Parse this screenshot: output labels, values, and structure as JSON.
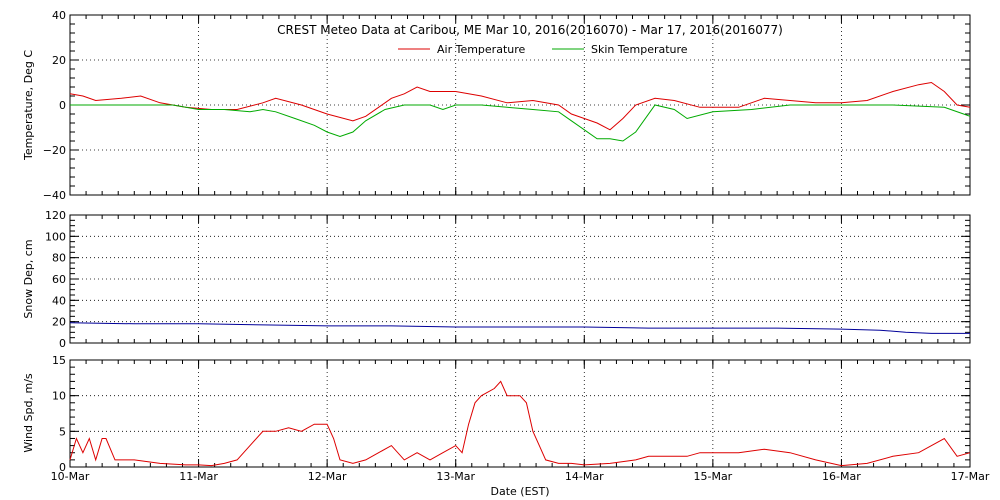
{
  "chart_data": [
    {
      "type": "line",
      "title": "CREST Meteo Data at Caribou, ME   Mar 10, 2016(2016070) - Mar 17, 2016(2016077)",
      "ylabel": "Temperature, Deg C",
      "ylim": [
        -40,
        40
      ],
      "yticks": [
        "40",
        "20",
        "0",
        "−20",
        "−40"
      ],
      "ytick_values": [
        40,
        20,
        0,
        -20,
        -40
      ],
      "xlim": [
        0,
        7
      ],
      "grid": true,
      "legend_position": "top-center",
      "series": [
        {
          "name": "Air Temperature",
          "color": "#dd0000",
          "x": [
            0,
            0.1,
            0.2,
            0.4,
            0.55,
            0.7,
            0.9,
            1.1,
            1.3,
            1.5,
            1.6,
            1.8,
            2.0,
            2.2,
            2.3,
            2.4,
            2.5,
            2.6,
            2.7,
            2.8,
            3.0,
            3.2,
            3.4,
            3.6,
            3.8,
            3.9,
            4.0,
            4.1,
            4.2,
            4.3,
            4.4,
            4.55,
            4.7,
            4.9,
            5.2,
            5.4,
            5.6,
            5.8,
            6.0,
            6.2,
            6.4,
            6.6,
            6.7,
            6.8,
            6.9,
            7.0
          ],
          "y": [
            5,
            4,
            2,
            3,
            4,
            1,
            -1,
            -2,
            -2,
            1,
            3,
            0,
            -4,
            -7,
            -5,
            -1,
            3,
            5,
            8,
            6,
            6,
            4,
            1,
            2,
            0,
            -4,
            -6,
            -8,
            -11,
            -6,
            0,
            3,
            2,
            -1,
            -1,
            3,
            2,
            1,
            1,
            2,
            6,
            9,
            10,
            6,
            0,
            -1
          ]
        },
        {
          "name": "Skin Temperature",
          "color": "#00aa00",
          "x": [
            0,
            0.2,
            0.5,
            0.8,
            1.0,
            1.2,
            1.4,
            1.5,
            1.6,
            1.75,
            1.9,
            2.0,
            2.1,
            2.2,
            2.3,
            2.45,
            2.6,
            2.8,
            2.9,
            3.0,
            3.2,
            3.4,
            3.6,
            3.8,
            3.9,
            4.0,
            4.1,
            4.2,
            4.3,
            4.4,
            4.55,
            4.7,
            4.8,
            5.0,
            5.3,
            5.6,
            6.0,
            6.4,
            6.8,
            6.95,
            7.0
          ],
          "y": [
            0,
            0,
            0,
            0,
            -2,
            -2,
            -3,
            -2,
            -3,
            -6,
            -9,
            -12,
            -14,
            -12,
            -7,
            -2,
            0,
            0,
            -2,
            0,
            0,
            -1,
            -2,
            -3,
            -7,
            -11,
            -15,
            -15,
            -16,
            -12,
            0,
            -2,
            -6,
            -3,
            -2,
            0,
            0,
            0,
            -1,
            -4,
            -5
          ]
        }
      ]
    },
    {
      "type": "line",
      "ylabel": "Snow Dep, cm",
      "ylim": [
        0,
        120
      ],
      "yticks": [
        "0",
        "20",
        "40",
        "60",
        "80",
        "100",
        "120"
      ],
      "ytick_values": [
        0,
        20,
        40,
        60,
        80,
        100,
        120
      ],
      "xlim": [
        0,
        7
      ],
      "grid": true,
      "series": [
        {
          "color": "#000099",
          "x": [
            0,
            0.5,
            1.0,
            1.5,
            2.0,
            2.5,
            3.0,
            3.5,
            4.0,
            4.5,
            5.0,
            5.5,
            6.0,
            6.3,
            6.5,
            6.7,
            7.0
          ],
          "y": [
            19,
            18,
            18,
            17,
            16,
            16,
            15,
            15,
            15,
            14,
            14,
            14,
            13,
            12,
            10,
            9,
            9
          ]
        }
      ]
    },
    {
      "type": "line",
      "ylabel": "Wind Spd, m/s",
      "xlabel": "Date (EST)",
      "ylim": [
        0,
        15
      ],
      "yticks": [
        "0",
        "5",
        "10",
        "15"
      ],
      "ytick_values": [
        0,
        5,
        10,
        15
      ],
      "xlim": [
        0,
        7
      ],
      "x_tick_labels": [
        "10-Mar",
        "11-Mar",
        "12-Mar",
        "13-Mar",
        "14-Mar",
        "15-Mar",
        "16-Mar",
        "17-Mar"
      ],
      "grid": true,
      "series": [
        {
          "color": "#dd0000",
          "x": [
            0,
            0.05,
            0.1,
            0.15,
            0.2,
            0.25,
            0.28,
            0.35,
            0.5,
            0.7,
            0.9,
            1.0,
            1.1,
            1.2,
            1.3,
            1.4,
            1.5,
            1.6,
            1.7,
            1.8,
            1.9,
            2.0,
            2.05,
            2.1,
            2.2,
            2.3,
            2.4,
            2.5,
            2.6,
            2.7,
            2.8,
            2.9,
            3.0,
            3.05,
            3.1,
            3.15,
            3.2,
            3.3,
            3.35,
            3.4,
            3.5,
            3.55,
            3.6,
            3.65,
            3.7,
            3.8,
            3.9,
            4.0,
            4.2,
            4.4,
            4.5,
            4.6,
            4.7,
            4.8,
            4.9,
            5.0,
            5.2,
            5.4,
            5.6,
            5.8,
            6.0,
            6.2,
            6.4,
            6.6,
            6.8,
            6.9,
            7.0
          ],
          "y": [
            1,
            4,
            2,
            4,
            1,
            4,
            4,
            1,
            1,
            0.5,
            0.3,
            0.3,
            0.2,
            0.5,
            1,
            3,
            5,
            5,
            5.5,
            5,
            6,
            6,
            4,
            1,
            0.5,
            1,
            2,
            3,
            1,
            2,
            1,
            2,
            3,
            2,
            6,
            9,
            10,
            11,
            12,
            10,
            10,
            9,
            5,
            3,
            1,
            0.5,
            0.5,
            0.3,
            0.5,
            1,
            1.5,
            1.5,
            1.5,
            1.5,
            2,
            2,
            2,
            2.5,
            2,
            1,
            0.2,
            0.5,
            1.5,
            2,
            4,
            1.5,
            2
          ]
        }
      ]
    }
  ]
}
